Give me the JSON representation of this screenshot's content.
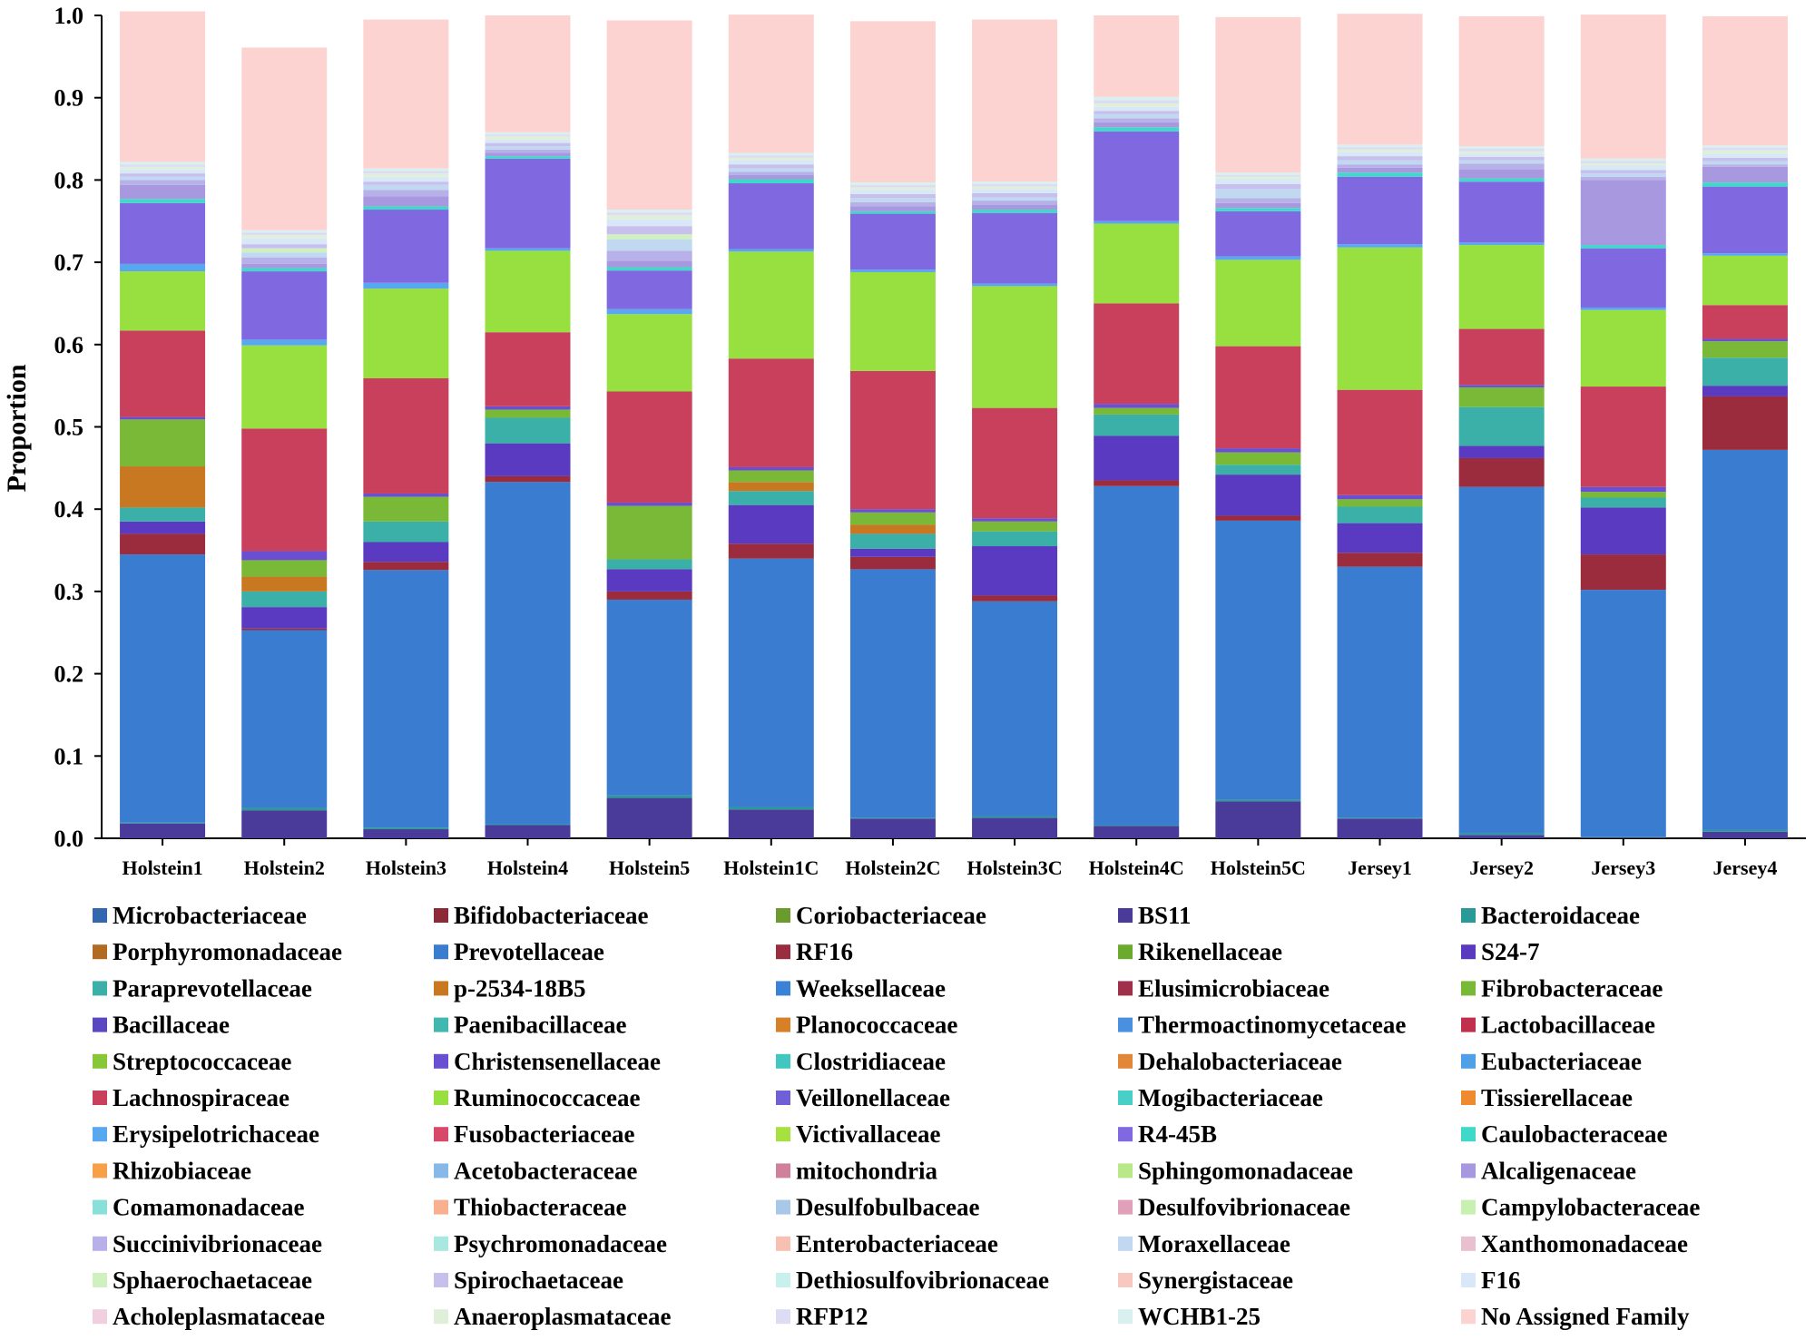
{
  "chart_data": {
    "type": "stacked-bar",
    "ylabel": "Proportion",
    "xlabel": "",
    "ylim": [
      0,
      1
    ],
    "yticks": [
      "0.0",
      "0.1",
      "0.2",
      "0.3",
      "0.4",
      "0.5",
      "0.6",
      "0.7",
      "0.8",
      "0.9",
      "1.0"
    ],
    "categories": [
      "Holstein1",
      "Holstein2",
      "Holstein3",
      "Holstein4",
      "Holstein5",
      "Holstein1C",
      "Holstein2C",
      "Holstein3C",
      "Holstein4C",
      "Holstein5C",
      "Jersey1",
      "Jersey2",
      "Jersey3",
      "Jersey4"
    ],
    "legend_position": "bottom",
    "series": [
      {
        "name": "Microbacteriaceae",
        "color": "#3566b0",
        "values": [
          0,
          0,
          0,
          0,
          0,
          0,
          0,
          0,
          0,
          0,
          0,
          0,
          0,
          0
        ]
      },
      {
        "name": "Bifidobacteriaceae",
        "color": "#8c2a3a",
        "values": [
          0,
          0,
          0,
          0,
          0,
          0,
          0,
          0,
          0,
          0,
          0,
          0,
          0,
          0
        ]
      },
      {
        "name": "Coriobacteriaceae",
        "color": "#6a9b2c",
        "values": [
          0,
          0,
          0,
          0,
          0,
          0,
          0,
          0,
          0,
          0,
          0,
          0,
          0,
          0
        ]
      },
      {
        "name": "BS11",
        "color": "#4a3a9a",
        "values": [
          0.018,
          0.034,
          0.011,
          0.016,
          0.049,
          0.035,
          0.024,
          0.025,
          0.015,
          0.045,
          0.024,
          0.004,
          0.001,
          0.008
        ]
      },
      {
        "name": "Bacteroidaceae",
        "color": "#2a9a98",
        "values": [
          0.001,
          0.003,
          0.002,
          0.001,
          0.003,
          0.003,
          0.001,
          0.002,
          0.001,
          0.002,
          0.001,
          0.002,
          0.001,
          0.002
        ]
      },
      {
        "name": "Porphyromonadaceae",
        "color": "#b26b22",
        "values": [
          0,
          0,
          0,
          0,
          0,
          0,
          0,
          0,
          0,
          0,
          0,
          0,
          0,
          0
        ]
      },
      {
        "name": "Prevotellaceae",
        "color": "#3a7cd0",
        "values": [
          0.326,
          0.216,
          0.313,
          0.416,
          0.238,
          0.302,
          0.302,
          0.261,
          0.412,
          0.339,
          0.305,
          0.421,
          0.3,
          0.462
        ]
      },
      {
        "name": "RF16",
        "color": "#9a2c3e",
        "values": [
          0.025,
          0.002,
          0.01,
          0.007,
          0.01,
          0.018,
          0.015,
          0.007,
          0.007,
          0.006,
          0.017,
          0.035,
          0.043,
          0.065
        ]
      },
      {
        "name": "Rikenellaceae",
        "color": "#6aaa2c",
        "values": [
          0,
          0,
          0,
          0,
          0,
          0,
          0,
          0,
          0,
          0,
          0,
          0,
          0,
          0
        ]
      },
      {
        "name": "S24-7",
        "color": "#5a3ac0",
        "values": [
          0.015,
          0.026,
          0.024,
          0.04,
          0.027,
          0.047,
          0.01,
          0.06,
          0.054,
          0.05,
          0.036,
          0.015,
          0.057,
          0.013
        ]
      },
      {
        "name": "Paraprevotellaceae",
        "color": "#3ab0a8",
        "values": [
          0.017,
          0.019,
          0.025,
          0.031,
          0.012,
          0.017,
          0.018,
          0.018,
          0.026,
          0.012,
          0.02,
          0.047,
          0.012,
          0.034
        ]
      },
      {
        "name": "p-2534-18B5",
        "color": "#c87820",
        "values": [
          0.05,
          0.018,
          0,
          0,
          0,
          0.011,
          0.011,
          0,
          0,
          0,
          0,
          0,
          0,
          0
        ]
      },
      {
        "name": "Weeksellaceae",
        "color": "#3a82d8",
        "values": [
          0,
          0,
          0,
          0,
          0,
          0,
          0,
          0,
          0,
          0,
          0,
          0,
          0,
          0
        ]
      },
      {
        "name": "Elusimicrobiaceae",
        "color": "#a0304a",
        "values": [
          0,
          0,
          0,
          0,
          0,
          0,
          0,
          0,
          0,
          0,
          0,
          0,
          0,
          0
        ]
      },
      {
        "name": "Fibrobacteraceae",
        "color": "#7ab838",
        "values": [
          0.057,
          0.02,
          0.03,
          0.01,
          0.065,
          0.014,
          0.015,
          0.012,
          0.008,
          0.015,
          0.009,
          0.024,
          0.007,
          0.02
        ]
      },
      {
        "name": "Bacillaceae",
        "color": "#5a48c0",
        "values": [
          0,
          0,
          0,
          0,
          0,
          0,
          0,
          0,
          0,
          0,
          0,
          0,
          0,
          0
        ]
      },
      {
        "name": "Paenibacillaceae",
        "color": "#40b8b0",
        "values": [
          0,
          0,
          0,
          0,
          0,
          0,
          0,
          0,
          0,
          0,
          0,
          0,
          0,
          0
        ]
      },
      {
        "name": "Planococcaceae",
        "color": "#d88028",
        "values": [
          0,
          0,
          0,
          0,
          0,
          0,
          0,
          0,
          0,
          0,
          0,
          0,
          0,
          0
        ]
      },
      {
        "name": "Thermoactinomycetaceae",
        "color": "#4a90e0",
        "values": [
          0,
          0,
          0,
          0,
          0,
          0,
          0,
          0,
          0,
          0,
          0,
          0,
          0,
          0
        ]
      },
      {
        "name": "Lactobacillaceae",
        "color": "#c0304e",
        "values": [
          0,
          0,
          0,
          0,
          0,
          0,
          0,
          0,
          0,
          0,
          0,
          0,
          0,
          0
        ]
      },
      {
        "name": "Streptococcaceae",
        "color": "#88c838",
        "values": [
          0,
          0,
          0,
          0,
          0,
          0,
          0,
          0,
          0,
          0,
          0,
          0,
          0,
          0
        ]
      },
      {
        "name": "Christensenellaceae",
        "color": "#6a50d0",
        "values": [
          0.003,
          0.011,
          0.004,
          0.004,
          0.004,
          0.004,
          0.004,
          0.004,
          0.005,
          0.005,
          0.005,
          0.003,
          0.006,
          0.003
        ]
      },
      {
        "name": "Clostridiaceae",
        "color": "#40c8c0",
        "values": [
          0,
          0,
          0,
          0,
          0,
          0,
          0,
          0,
          0,
          0,
          0,
          0,
          0,
          0
        ]
      },
      {
        "name": "Dehalobacteriaceae",
        "color": "#e08838",
        "values": [
          0,
          0,
          0,
          0,
          0,
          0,
          0,
          0,
          0,
          0,
          0,
          0,
          0,
          0
        ]
      },
      {
        "name": "Eubacteriaceae",
        "color": "#50a0e8",
        "values": [
          0,
          0,
          0,
          0,
          0,
          0,
          0,
          0,
          0,
          0,
          0,
          0,
          0,
          0
        ]
      },
      {
        "name": "Lachnospiraceae",
        "color": "#c8405c",
        "values": [
          0.105,
          0.149,
          0.14,
          0.09,
          0.135,
          0.132,
          0.168,
          0.134,
          0.122,
          0.124,
          0.128,
          0.068,
          0.122,
          0.041
        ]
      },
      {
        "name": "Ruminococcaceae",
        "color": "#98e040",
        "values": [
          0.072,
          0.101,
          0.109,
          0.099,
          0.094,
          0.13,
          0.12,
          0.148,
          0.097,
          0.105,
          0.173,
          0.102,
          0.093,
          0.06
        ]
      },
      {
        "name": "Veillonellaceae",
        "color": "#7060d8",
        "values": [
          0,
          0,
          0,
          0,
          0,
          0,
          0,
          0,
          0,
          0,
          0,
          0,
          0,
          0
        ]
      },
      {
        "name": "Mogibacteriaceae",
        "color": "#48d0c8",
        "values": [
          0,
          0,
          0,
          0,
          0,
          0,
          0,
          0,
          0,
          0,
          0,
          0,
          0,
          0
        ]
      },
      {
        "name": "Tissierellaceae",
        "color": "#f08a30",
        "values": [
          0,
          0,
          0,
          0,
          0,
          0,
          0,
          0,
          0,
          0,
          0,
          0,
          0,
          0
        ]
      },
      {
        "name": "Erysipelotrichaceae",
        "color": "#58a8f0",
        "values": [
          0.009,
          0.007,
          0.007,
          0.003,
          0.006,
          0.003,
          0.003,
          0.003,
          0.003,
          0.004,
          0.004,
          0.003,
          0.003,
          0.003
        ]
      },
      {
        "name": "Fusobacteriaceae",
        "color": "#d84868",
        "values": [
          0,
          0,
          0,
          0,
          0,
          0,
          0,
          0,
          0,
          0,
          0,
          0,
          0,
          0
        ]
      },
      {
        "name": "Victivallaceae",
        "color": "#a8e040",
        "values": [
          0,
          0,
          0,
          0,
          0,
          0,
          0,
          0,
          0,
          0,
          0,
          0,
          0,
          0
        ]
      },
      {
        "name": "R4-45B",
        "color": "#8068e0",
        "values": [
          0.074,
          0.083,
          0.089,
          0.109,
          0.047,
          0.08,
          0.068,
          0.086,
          0.109,
          0.055,
          0.082,
          0.074,
          0.072,
          0.081
        ]
      },
      {
        "name": "Caulobacteraceae",
        "color": "#40d8c8",
        "values": [
          0.005,
          0.004,
          0.004,
          0.003,
          0.004,
          0.005,
          0.003,
          0.004,
          0.005,
          0.004,
          0.005,
          0.004,
          0.004,
          0.005
        ]
      },
      {
        "name": "Rhizobiaceae",
        "color": "#f8a048",
        "values": [
          0,
          0,
          0,
          0,
          0,
          0,
          0,
          0,
          0,
          0,
          0,
          0,
          0,
          0
        ]
      },
      {
        "name": "Acetobacteraceae",
        "color": "#88b8e8",
        "values": [
          0,
          0,
          0,
          0,
          0,
          0,
          0,
          0,
          0,
          0,
          0,
          0,
          0,
          0
        ]
      },
      {
        "name": "mitochondria",
        "color": "#d0809a",
        "values": [
          0,
          0,
          0,
          0,
          0,
          0,
          0,
          0,
          0,
          0,
          0,
          0,
          0,
          0
        ]
      },
      {
        "name": "Sphingomonadaceae",
        "color": "#b8e888",
        "values": [
          0,
          0,
          0,
          0,
          0,
          0,
          0,
          0,
          0,
          0,
          0,
          0,
          0,
          0
        ]
      },
      {
        "name": "Alcaligenaceae",
        "color": "#a898e0",
        "values": [
          0.017,
          0.005,
          0.012,
          0.004,
          0.008,
          0.005,
          0.006,
          0.006,
          0.006,
          0.006,
          0.006,
          0.011,
          0.079,
          0.019
        ]
      },
      {
        "name": "Comamonadaceae",
        "color": "#88e0d8",
        "values": [
          0,
          0,
          0,
          0,
          0,
          0,
          0,
          0,
          0,
          0,
          0,
          0,
          0,
          0
        ]
      },
      {
        "name": "Thiobacteraceae",
        "color": "#f8b090",
        "values": [
          0,
          0,
          0,
          0,
          0,
          0,
          0,
          0,
          0,
          0,
          0,
          0,
          0,
          0
        ]
      },
      {
        "name": "Desulfobulbaceae",
        "color": "#a8c8e8",
        "values": [
          0,
          0,
          0,
          0,
          0,
          0,
          0,
          0,
          0,
          0,
          0,
          0,
          0,
          0
        ]
      },
      {
        "name": "Desulfovibrionaceae",
        "color": "#e0a0b8",
        "values": [
          0,
          0,
          0,
          0,
          0,
          0,
          0,
          0,
          0,
          0,
          0,
          0,
          0,
          0
        ]
      },
      {
        "name": "Campylobacteraceae",
        "color": "#c8f0b0",
        "values": [
          0,
          0,
          0,
          0,
          0,
          0,
          0,
          0,
          0,
          0,
          0,
          0,
          0,
          0
        ]
      },
      {
        "name": "Succinivibrionaceae",
        "color": "#b8b0e8",
        "values": [
          0.006,
          0.008,
          0.008,
          0.004,
          0.012,
          0.004,
          0.005,
          0.005,
          0.005,
          0.006,
          0.004,
          0.007,
          0.004,
          0.003
        ]
      },
      {
        "name": "Psychromonadaceae",
        "color": "#a8e8e0",
        "values": [
          0,
          0,
          0,
          0,
          0,
          0,
          0,
          0,
          0,
          0,
          0,
          0,
          0,
          0
        ]
      },
      {
        "name": "Enterobacteriaceae",
        "color": "#f8c0b0",
        "values": [
          0,
          0,
          0,
          0,
          0,
          0,
          0,
          0,
          0,
          0,
          0,
          0,
          0,
          0
        ]
      },
      {
        "name": "Moraxellaceae",
        "color": "#c0d8f0",
        "values": [
          0.004,
          0.006,
          0.006,
          0.004,
          0.014,
          0.004,
          0.005,
          0.004,
          0.005,
          0.011,
          0.005,
          0.004,
          0.004,
          0.004
        ]
      },
      {
        "name": "Xanthomonadaceae",
        "color": "#e8c0d0",
        "values": [
          0,
          0,
          0,
          0,
          0,
          0,
          0,
          0,
          0,
          0,
          0,
          0,
          0,
          0
        ]
      },
      {
        "name": "Sphaerochaetaceae",
        "color": "#d0f0c0",
        "values": [
          0,
          0.005,
          0,
          0,
          0.006,
          0,
          0,
          0,
          0,
          0,
          0,
          0,
          0,
          0
        ]
      },
      {
        "name": "Spirochaetaceae",
        "color": "#c8c0ec",
        "values": [
          0.004,
          0.005,
          0.004,
          0.004,
          0.01,
          0.005,
          0.005,
          0.005,
          0.004,
          0.006,
          0.005,
          0.004,
          0.004,
          0.004
        ]
      },
      {
        "name": "Dethiosulfovibrionaceae",
        "color": "#c8f0ec",
        "values": [
          0,
          0,
          0,
          0,
          0,
          0,
          0,
          0,
          0,
          0,
          0,
          0,
          0,
          0
        ]
      },
      {
        "name": "Synergistaceae",
        "color": "#f8c8c0",
        "values": [
          0,
          0,
          0,
          0,
          0,
          0,
          0,
          0,
          0,
          0,
          0,
          0,
          0,
          0
        ]
      },
      {
        "name": "F16",
        "color": "#d8e8f8",
        "values": [
          0.005,
          0.007,
          0.006,
          0.004,
          0.008,
          0.005,
          0.005,
          0.005,
          0.005,
          0.006,
          0.005,
          0.004,
          0.005,
          0.005
        ]
      },
      {
        "name": "Acholeplasmataceae",
        "color": "#f0d0e0",
        "values": [
          0,
          0,
          0,
          0,
          0,
          0,
          0,
          0,
          0,
          0,
          0,
          0,
          0,
          0
        ]
      },
      {
        "name": "Anaeroplasmataceae",
        "color": "#e0f0d8",
        "values": [
          0.003,
          0.004,
          0.004,
          0.004,
          0.005,
          0.003,
          0.003,
          0.003,
          0.004,
          0.003,
          0.003,
          0.003,
          0.003,
          0.004
        ]
      },
      {
        "name": "RFP12",
        "color": "#dcdcf4",
        "values": [
          0.003,
          0.003,
          0.003,
          0.002,
          0.004,
          0.003,
          0.003,
          0.003,
          0.004,
          0.002,
          0.003,
          0.003,
          0.003,
          0.003
        ]
      },
      {
        "name": "WCHB1-25",
        "color": "#d8f0f0",
        "values": [
          0.003,
          0.003,
          0.003,
          0.003,
          0.003,
          0.003,
          0.003,
          0.003,
          0.004,
          0.003,
          0.003,
          0.003,
          0.003,
          0.003
        ]
      },
      {
        "name": "No Assigned Family",
        "color": "#fdd3d1",
        "values": [
          0.183,
          0.222,
          0.181,
          0.142,
          0.23,
          0.168,
          0.196,
          0.197,
          0.099,
          0.189,
          0.159,
          0.158,
          0.175,
          0.157
        ]
      }
    ]
  }
}
